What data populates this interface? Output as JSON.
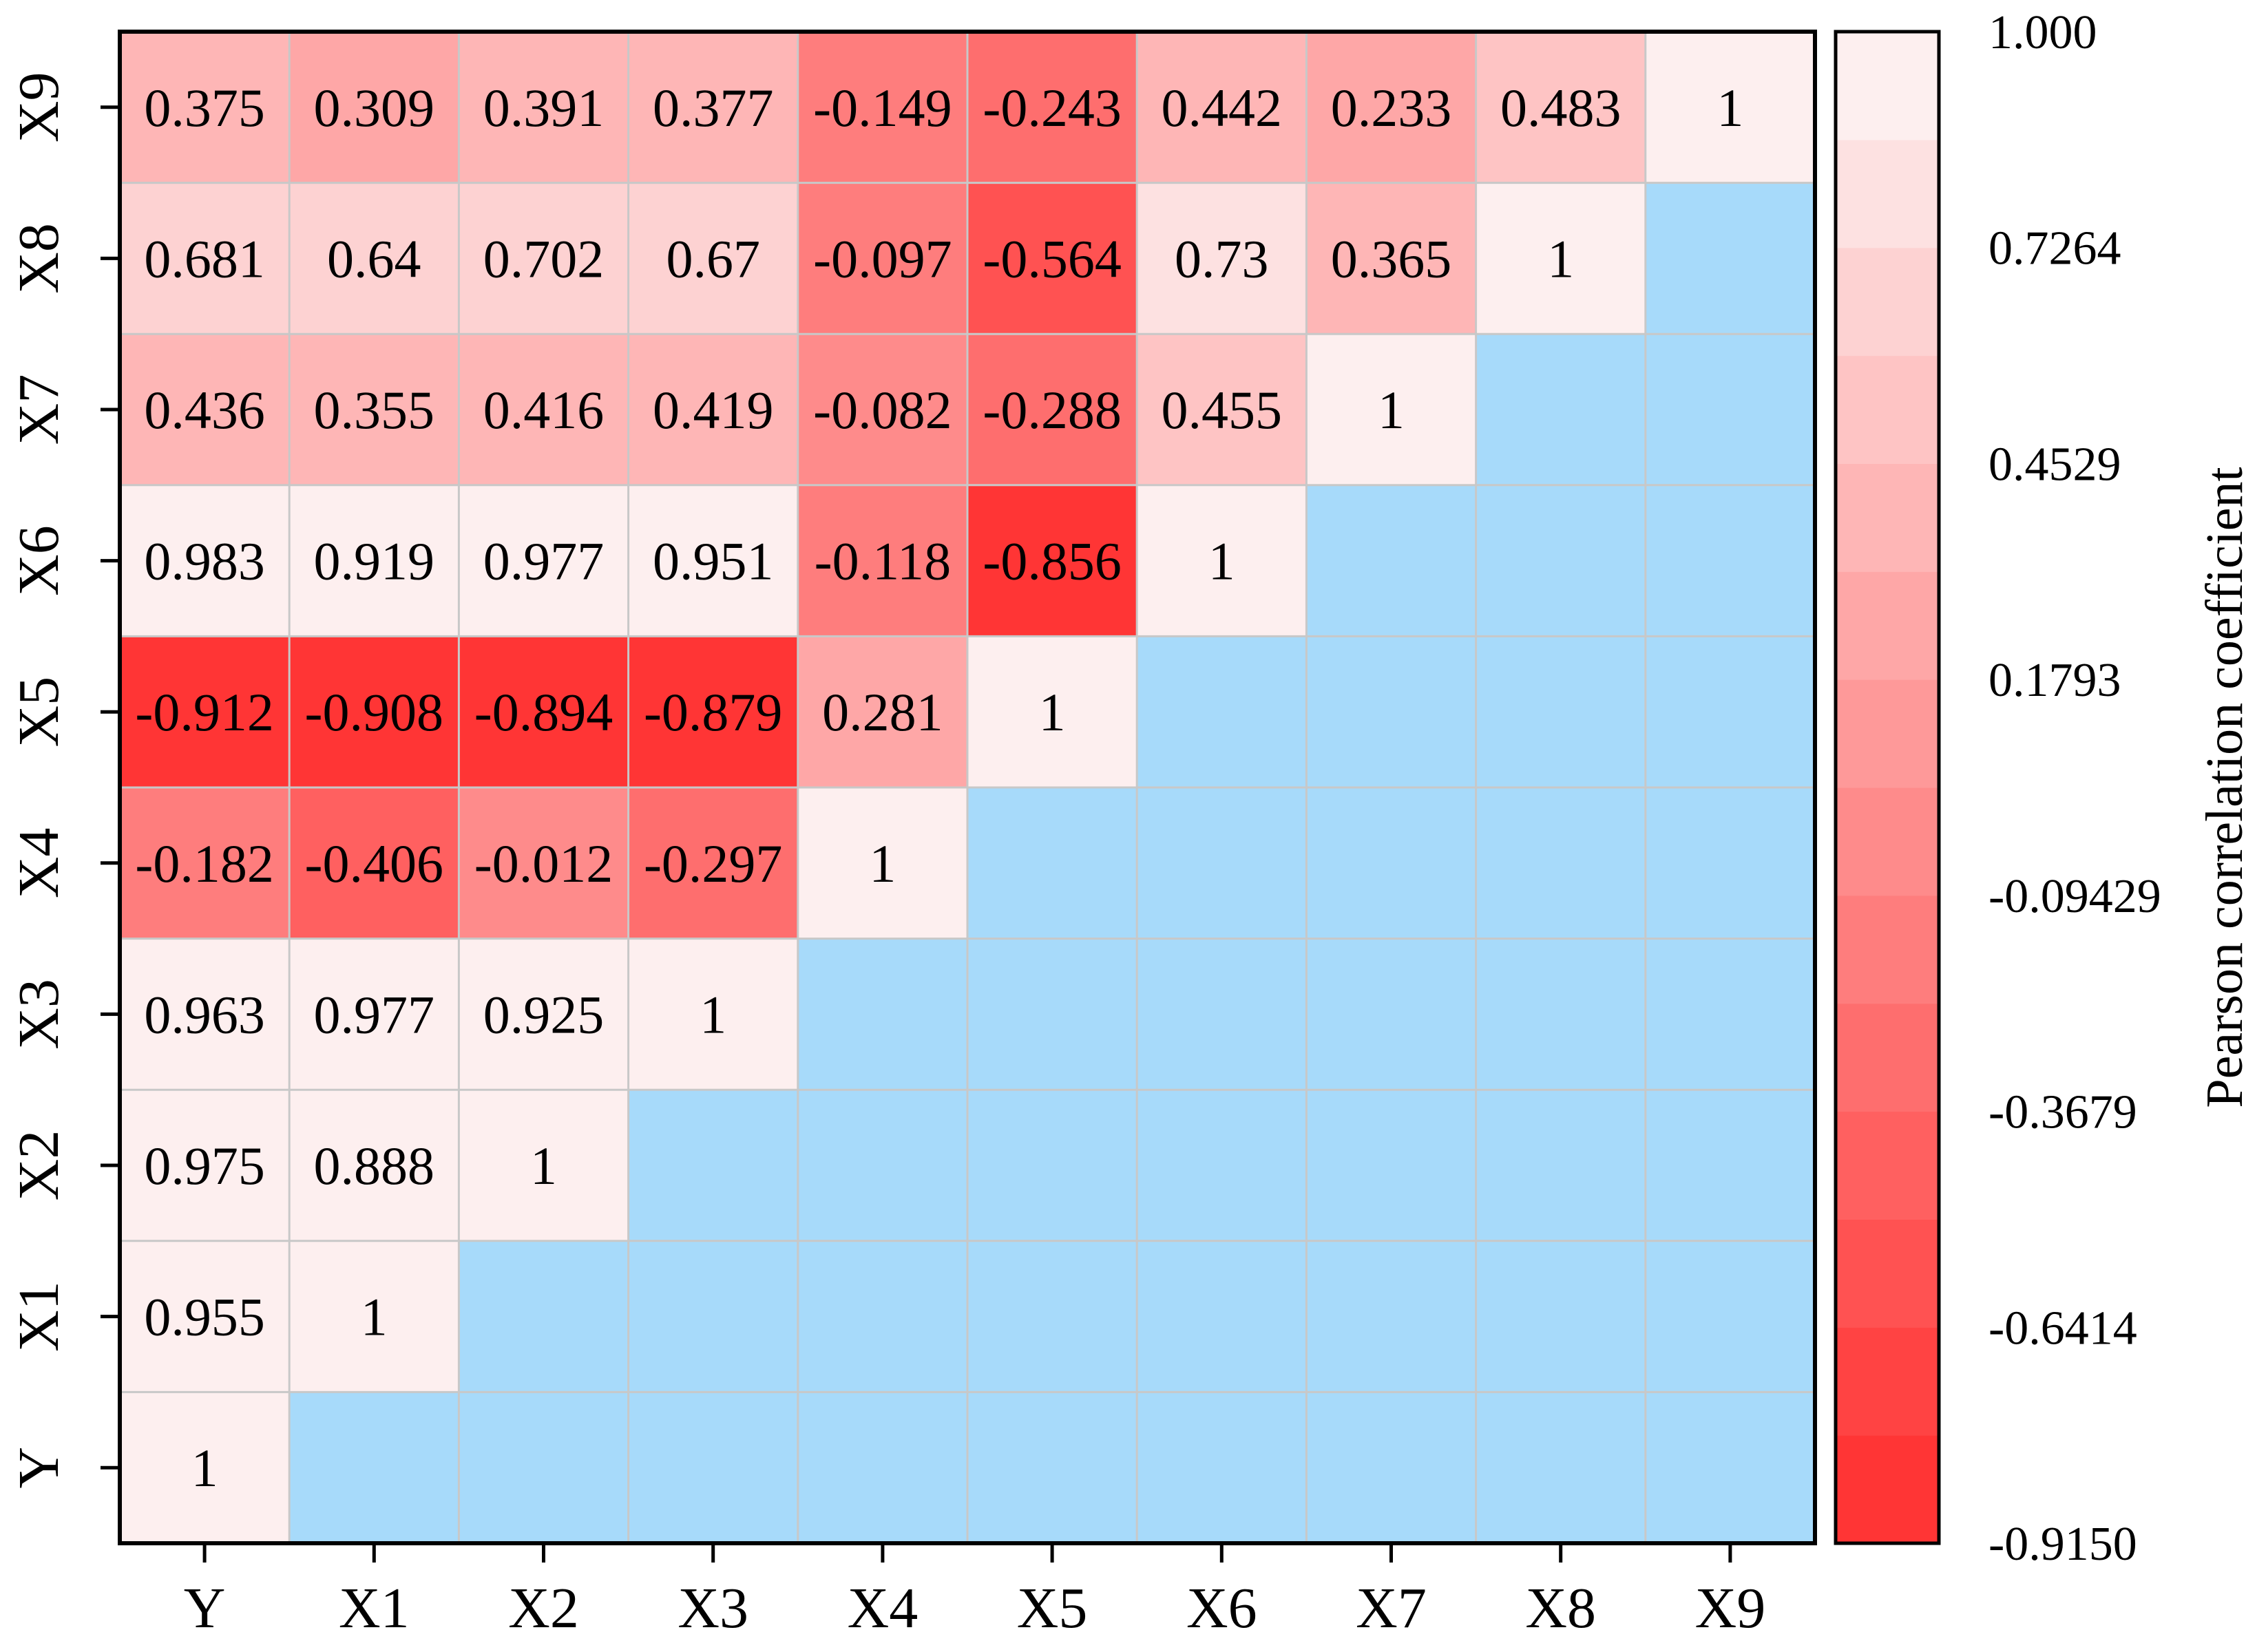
{
  "chart_data": {
    "type": "heatmap",
    "title": "",
    "labels": [
      "Y",
      "X1",
      "X2",
      "X3",
      "X4",
      "X5",
      "X6",
      "X7",
      "X8",
      "X9"
    ],
    "cells": [
      [
        1
      ],
      [
        0.955,
        1
      ],
      [
        0.975,
        0.888,
        1
      ],
      [
        0.963,
        0.977,
        0.925,
        1
      ],
      [
        -0.182,
        -0.406,
        -0.012,
        -0.297,
        1
      ],
      [
        -0.912,
        -0.908,
        -0.894,
        -0.879,
        0.281,
        1
      ],
      [
        0.983,
        0.919,
        0.977,
        0.951,
        -0.118,
        -0.856,
        1
      ],
      [
        0.436,
        0.355,
        0.416,
        0.419,
        -0.082,
        -0.288,
        0.455,
        1
      ],
      [
        0.681,
        0.64,
        0.702,
        0.67,
        -0.097,
        -0.564,
        0.73,
        0.365,
        1
      ],
      [
        0.375,
        0.309,
        0.391,
        0.377,
        -0.149,
        -0.243,
        0.442,
        0.233,
        0.483,
        1
      ]
    ],
    "colorbar": {
      "label": "Pearson correlation coefficient",
      "tick_labels": [
        "1.000",
        "0.7264",
        "0.4529",
        "0.1793",
        "-0.09429",
        "-0.3679",
        "-0.6414",
        "-0.9150"
      ],
      "min": -0.915,
      "max": 1.0,
      "levels": 14,
      "color_low": "#ff2e2e",
      "color_high": "#fdf6f6"
    },
    "empty_cell_color": "#a7dafa",
    "grid_color": "#c8c8c8"
  }
}
